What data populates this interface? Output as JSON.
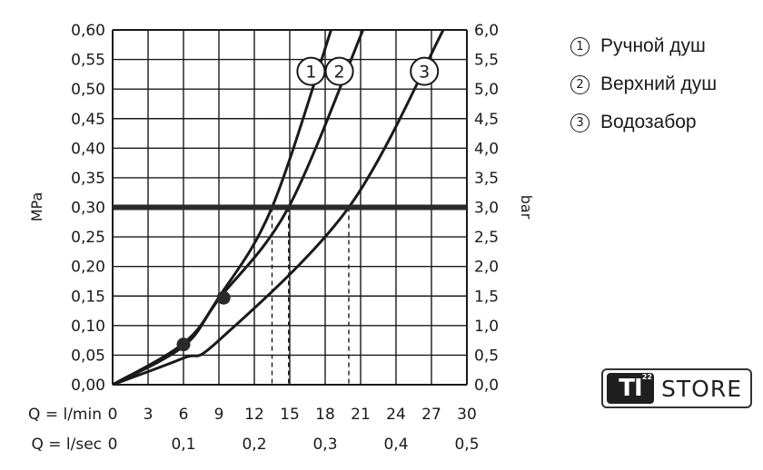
{
  "chart_data": {
    "type": "line",
    "ylabel_left": "MPa",
    "ylabel_right": "bar",
    "ylim": [
      0,
      0.6
    ],
    "y2lim": [
      0,
      6.0
    ],
    "xlim": [
      0,
      30
    ],
    "y_ticks": [
      "0,00",
      "0,05",
      "0,10",
      "0,15",
      "0,20",
      "0,25",
      "0,30",
      "0,35",
      "0,40",
      "0,45",
      "0,50",
      "0,55",
      "0,60"
    ],
    "y2_ticks": [
      "0,0",
      "0,5",
      "1,0",
      "1,5",
      "2,0",
      "2,5",
      "3,0",
      "3,5",
      "4,0",
      "4,5",
      "5,0",
      "5,5",
      "6,0"
    ],
    "x_axis_label": "Q = l/min",
    "x_ticks": [
      "0",
      "3",
      "6",
      "9",
      "12",
      "15",
      "18",
      "21",
      "24",
      "27",
      "30"
    ],
    "x2_axis_label": "Q = l/sec",
    "x2_ticks": [
      {
        "value": 0,
        "label": "0"
      },
      {
        "value": 6,
        "label": "0,1"
      },
      {
        "value": 12,
        "label": "0,2"
      },
      {
        "value": 18,
        "label": "0,3"
      },
      {
        "value": 24,
        "label": "0,4"
      },
      {
        "value": 30,
        "label": "0,5"
      }
    ],
    "grid": true,
    "reference_line_y": 0.3,
    "series": [
      {
        "label": "1",
        "x": [
          0,
          6,
          9,
          13.5,
          18.5
        ],
        "y": [
          0,
          0.07,
          0.148,
          0.3,
          0.6
        ]
      },
      {
        "label": "2",
        "x": [
          0,
          6,
          9,
          14.9,
          21.2
        ],
        "y": [
          0,
          0.065,
          0.145,
          0.3,
          0.6
        ]
      },
      {
        "label": "3",
        "x": [
          0,
          6,
          9,
          20,
          28
        ],
        "y": [
          0,
          0.045,
          0.075,
          0.3,
          0.6
        ]
      }
    ],
    "markers": [
      {
        "x": 6,
        "y": 0.068
      },
      {
        "x": 9.4,
        "y": 0.147
      }
    ],
    "drop_lines_x": [
      13.5,
      14.9,
      20
    ]
  },
  "legend": {
    "items": [
      {
        "marker": "1",
        "label": "Ручной душ"
      },
      {
        "marker": "2",
        "label": "Верхний душ"
      },
      {
        "marker": "3",
        "label": "Водозабор"
      }
    ]
  },
  "logo": {
    "mark": "TI",
    "superscript": "22",
    "word": "STORE"
  }
}
